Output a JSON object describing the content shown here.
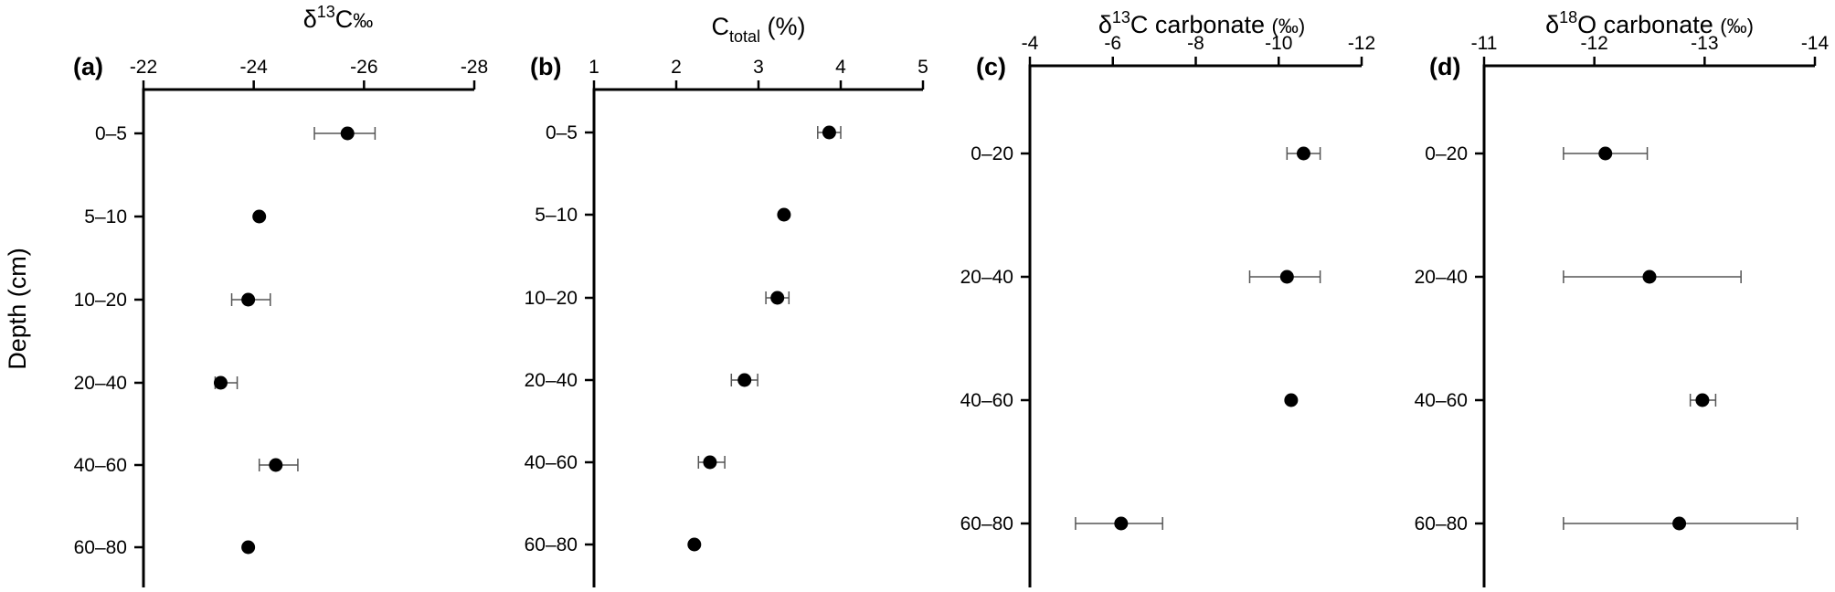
{
  "y_axis_title": "Depth (cm)",
  "chart_data": [
    {
      "type": "scatter",
      "panel": "(a)",
      "title_main": "δ",
      "title_sup": "13",
      "title_rest": "C",
      "title_unit": "‰",
      "x_ticks": [
        -22,
        -24,
        -26,
        -28
      ],
      "xlim": [
        -22,
        -28
      ],
      "categories": [
        "0–5",
        "5–10",
        "10–20",
        "20–40",
        "40–60",
        "60–80"
      ],
      "values": [
        -25.7,
        -24.1,
        -23.9,
        -23.4,
        -24.4,
        -23.9
      ],
      "err_low": [
        -25.1,
        null,
        -23.6,
        -23.3,
        -24.1,
        null
      ],
      "err_high": [
        -26.2,
        null,
        -24.3,
        -23.7,
        -24.8,
        null
      ]
    },
    {
      "type": "scatter",
      "panel": "(b)",
      "title_main": "C",
      "title_sub": "total",
      "title_rest": "  (%)",
      "x_ticks": [
        1,
        2,
        3,
        4,
        5
      ],
      "xlim": [
        1,
        5
      ],
      "categories": [
        "0–5",
        "5–10",
        "10–20",
        "20–40",
        "40–60",
        "60–80"
      ],
      "values": [
        3.86,
        3.31,
        3.23,
        2.83,
        2.41,
        2.22
      ],
      "err_low": [
        3.72,
        null,
        3.09,
        2.67,
        2.27,
        null
      ],
      "err_high": [
        4.0,
        null,
        3.37,
        2.99,
        2.59,
        null
      ]
    },
    {
      "type": "scatter",
      "panel": "(c)",
      "title_main": "δ",
      "title_sup": "13",
      "title_rest": "C carbonate ",
      "title_unit": "(‰)",
      "x_ticks": [
        -4,
        -6,
        -8,
        -10,
        -12
      ],
      "xlim": [
        -4,
        -12
      ],
      "categories": [
        "0–20",
        "20–40",
        "40–60",
        "60–80"
      ],
      "values": [
        -10.6,
        -10.2,
        -10.3,
        -6.2
      ],
      "err_low": [
        -10.2,
        -9.3,
        null,
        -5.1
      ],
      "err_high": [
        -11.0,
        -11.0,
        null,
        -7.2
      ]
    },
    {
      "type": "scatter",
      "panel": "(d)",
      "title_main": "δ",
      "title_sup": "18",
      "title_rest": "O carbonate ",
      "title_unit": "(‰)",
      "x_ticks": [
        -11,
        -12,
        -13,
        -14
      ],
      "xlim": [
        -11,
        -14
      ],
      "categories": [
        "0–20",
        "20–40",
        "40–60",
        "60–80"
      ],
      "values": [
        -12.1,
        -12.5,
        -12.98,
        -12.77
      ],
      "err_low": [
        -11.72,
        -11.72,
        -12.87,
        -11.72
      ],
      "err_high": [
        -12.48,
        -13.33,
        -13.1,
        -13.84
      ]
    }
  ]
}
